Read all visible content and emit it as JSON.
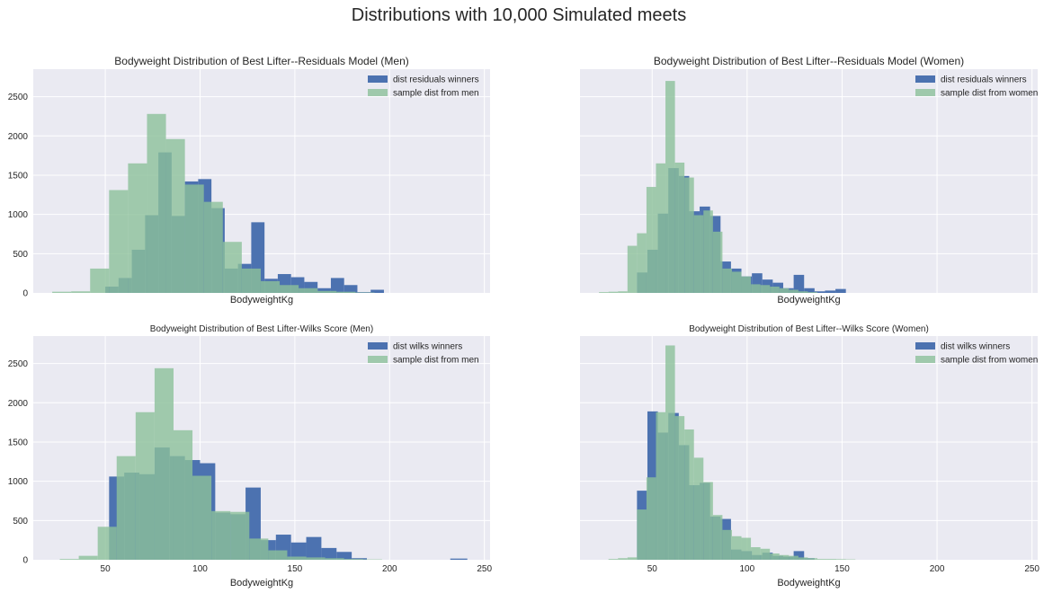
{
  "figure": {
    "suptitle": "Distributions with 10,000 Simulated meets"
  },
  "colors": {
    "axes_bg": "#EAEAF2",
    "grid": "#FFFFFF",
    "winners": "#4C72B0",
    "sample": "#8CC19A",
    "text": "#262626"
  },
  "chart_data": [
    {
      "type": "histogram",
      "title": "Bodyweight Distribution of Best Lifter--Residuals Model (Men)",
      "xlabel": "BodyweightKg",
      "ylabel": "",
      "xlim": [
        12,
        253
      ],
      "ylim": [
        0,
        2850
      ],
      "xticks": [],
      "yticks": [
        0,
        500,
        1000,
        1500,
        2000,
        2500
      ],
      "grid": true,
      "legend_position": "top-right",
      "series": [
        {
          "name": "dist residuals winners",
          "color": "#4C72B0",
          "opacity": 1,
          "bins": [
            [
              50,
              57,
              80
            ],
            [
              57,
              64,
              190
            ],
            [
              64,
              71,
              550
            ],
            [
              71,
              78,
              990
            ],
            [
              78,
              85,
              1790
            ],
            [
              85,
              92,
              980
            ],
            [
              92,
              99,
              1420
            ],
            [
              99,
              106,
              1450
            ],
            [
              106,
              113,
              1080
            ],
            [
              113,
              120,
              310
            ],
            [
              120,
              127,
              370
            ],
            [
              127,
              134,
              900
            ],
            [
              134,
              141,
              180
            ],
            [
              141,
              148,
              240
            ],
            [
              148,
              155,
              200
            ],
            [
              155,
              162,
              140
            ],
            [
              162,
              169,
              60
            ],
            [
              169,
              176,
              190
            ],
            [
              176,
              183,
              100
            ],
            [
              183,
              190,
              10
            ],
            [
              190,
              197,
              40
            ]
          ]
        },
        {
          "name": "sample dist from men",
          "color": "#8CC19A",
          "opacity": 0.8,
          "bins": [
            [
              22,
              32,
              15
            ],
            [
              32,
              42,
              20
            ],
            [
              42,
              52,
              310
            ],
            [
              52,
              62,
              1310
            ],
            [
              62,
              72,
              1650
            ],
            [
              72,
              82,
              2280
            ],
            [
              82,
              92,
              1960
            ],
            [
              92,
              102,
              1380
            ],
            [
              102,
              112,
              1160
            ],
            [
              112,
              122,
              650
            ],
            [
              122,
              132,
              310
            ],
            [
              132,
              142,
              150
            ],
            [
              142,
              152,
              100
            ],
            [
              152,
              162,
              60
            ],
            [
              162,
              172,
              25
            ],
            [
              172,
              182,
              15
            ],
            [
              182,
              192,
              5
            ]
          ]
        }
      ]
    },
    {
      "type": "histogram",
      "title": "Bodyweight Distribution of Best Lifter--Residuals Model (Women)",
      "xlabel": "BodyweightKg",
      "ylabel": "",
      "xlim": [
        12,
        253
      ],
      "ylim": [
        0,
        2850
      ],
      "xticks": [],
      "yticks": [],
      "grid": true,
      "legend_position": "top-right",
      "series": [
        {
          "name": "dist residuals winners",
          "color": "#4C72B0",
          "opacity": 1,
          "bins": [
            [
              42,
              47.5,
              260
            ],
            [
              47.5,
              53,
              550
            ],
            [
              53,
              58.5,
              1010
            ],
            [
              58.5,
              64,
              1590
            ],
            [
              64,
              69.5,
              1490
            ],
            [
              69.5,
              75,
              1040
            ],
            [
              75,
              80.5,
              1100
            ],
            [
              80.5,
              86,
              980
            ],
            [
              86,
              91.5,
              400
            ],
            [
              91.5,
              97,
              310
            ],
            [
              97,
              102.5,
              210
            ],
            [
              102.5,
              108,
              250
            ],
            [
              108,
              113.5,
              170
            ],
            [
              113.5,
              119,
              130
            ],
            [
              119,
              124.5,
              60
            ],
            [
              124.5,
              130,
              230
            ],
            [
              130,
              135.5,
              60
            ],
            [
              135.5,
              141,
              20
            ],
            [
              141,
              146.5,
              30
            ],
            [
              146.5,
              152,
              50
            ]
          ]
        },
        {
          "name": "sample dist from women",
          "color": "#8CC19A",
          "opacity": 0.8,
          "bins": [
            [
              22,
              27,
              10
            ],
            [
              27,
              32,
              15
            ],
            [
              32,
              37,
              20
            ],
            [
              37,
              42,
              600
            ],
            [
              42,
              47,
              760
            ],
            [
              47,
              52,
              1350
            ],
            [
              52,
              57,
              1650
            ],
            [
              57,
              62,
              2700
            ],
            [
              62,
              67,
              1660
            ],
            [
              67,
              72,
              1470
            ],
            [
              72,
              77,
              990
            ],
            [
              77,
              82,
              1050
            ],
            [
              82,
              87,
              780
            ],
            [
              87,
              92,
              310
            ],
            [
              92,
              97,
              270
            ],
            [
              97,
              102,
              210
            ],
            [
              102,
              107,
              110
            ],
            [
              107,
              112,
              100
            ],
            [
              112,
              117,
              80
            ],
            [
              117,
              122,
              60
            ],
            [
              122,
              127,
              40
            ],
            [
              127,
              132,
              20
            ],
            [
              132,
              137,
              10
            ]
          ]
        }
      ]
    },
    {
      "type": "histogram",
      "title": "Bodyweight Distribution of Best Lifter-Wilks Score (Men)",
      "xlabel": "BodyweightKg",
      "ylabel": "",
      "xlim": [
        12,
        253
      ],
      "ylim": [
        0,
        2850
      ],
      "xticks": [
        50,
        100,
        150,
        200,
        250
      ],
      "yticks": [
        0,
        500,
        1000,
        1500,
        2000,
        2500
      ],
      "grid": true,
      "legend_position": "top-right",
      "series": [
        {
          "name": "dist wilks winners",
          "color": "#4C72B0",
          "opacity": 1,
          "bins": [
            [
              52,
              60,
              1060
            ],
            [
              60,
              68,
              1110
            ],
            [
              68,
              76,
              1090
            ],
            [
              76,
              84,
              1430
            ],
            [
              84,
              92,
              1320
            ],
            [
              92,
              100,
              1270
            ],
            [
              100,
              108,
              1230
            ],
            [
              108,
              116,
              600
            ],
            [
              116,
              124,
              580
            ],
            [
              124,
              132,
              920
            ],
            [
              132,
              140,
              250
            ],
            [
              140,
              148,
              320
            ],
            [
              148,
              156,
              220
            ],
            [
              156,
              164,
              290
            ],
            [
              164,
              172,
              150
            ],
            [
              172,
              180,
              100
            ],
            [
              180,
              188,
              20
            ],
            [
              232,
              241,
              15
            ]
          ]
        },
        {
          "name": "sample dist from men",
          "color": "#8CC19A",
          "opacity": 0.8,
          "bins": [
            [
              26,
              36,
              10
            ],
            [
              36,
              46,
              50
            ],
            [
              46,
              56,
              420
            ],
            [
              56,
              66,
              1320
            ],
            [
              66,
              76,
              1880
            ],
            [
              76,
              86,
              2440
            ],
            [
              86,
              96,
              1650
            ],
            [
              96,
              106,
              1070
            ],
            [
              106,
              116,
              620
            ],
            [
              116,
              126,
              610
            ],
            [
              126,
              136,
              270
            ],
            [
              136,
              146,
              120
            ],
            [
              146,
              156,
              40
            ],
            [
              156,
              166,
              30
            ],
            [
              166,
              176,
              20
            ],
            [
              176,
              186,
              10
            ],
            [
              186,
              196,
              5
            ]
          ]
        }
      ]
    },
    {
      "type": "histogram",
      "title": "Bodyweight Distribution of Best Lifter--Wilks Score (Women)",
      "xlabel": "BodyweightKg",
      "ylabel": "",
      "xlim": [
        12,
        253
      ],
      "ylim": [
        0,
        2850
      ],
      "xticks": [
        50,
        100,
        150,
        200,
        250
      ],
      "yticks": [],
      "grid": true,
      "legend_position": "top-right",
      "series": [
        {
          "name": "dist wilks winners",
          "color": "#4C72B0",
          "opacity": 1,
          "bins": [
            [
              42,
              47.5,
              880
            ],
            [
              47.5,
              53,
              1890
            ],
            [
              53,
              58.5,
              1620
            ],
            [
              58.5,
              64,
              1870
            ],
            [
              64,
              69.5,
              1460
            ],
            [
              69.5,
              75,
              950
            ],
            [
              75,
              80.5,
              980
            ],
            [
              80.5,
              86,
              550
            ],
            [
              86,
              91.5,
              520
            ],
            [
              91.5,
              97,
              130
            ],
            [
              97,
              102.5,
              110
            ],
            [
              102.5,
              108,
              60
            ],
            [
              108,
              113.5,
              90
            ],
            [
              113.5,
              119,
              50
            ],
            [
              119,
              124.5,
              40
            ],
            [
              124.5,
              130,
              110
            ],
            [
              130,
              135.5,
              20
            ]
          ]
        },
        {
          "name": "sample dist from women",
          "color": "#8CC19A",
          "opacity": 0.8,
          "bins": [
            [
              27,
              32,
              10
            ],
            [
              32,
              37,
              20
            ],
            [
              37,
              42,
              30
            ],
            [
              42,
              47,
              640
            ],
            [
              47,
              52,
              1050
            ],
            [
              52,
              57,
              1880
            ],
            [
              57,
              62,
              2730
            ],
            [
              62,
              67,
              1830
            ],
            [
              67,
              72,
              1660
            ],
            [
              72,
              77,
              1300
            ],
            [
              77,
              82,
              990
            ],
            [
              82,
              87,
              570
            ],
            [
              87,
              92,
              380
            ],
            [
              92,
              97,
              300
            ],
            [
              97,
              102,
              280
            ],
            [
              102,
              107,
              160
            ],
            [
              107,
              112,
              140
            ],
            [
              112,
              117,
              80
            ],
            [
              117,
              122,
              60
            ],
            [
              122,
              127,
              50
            ],
            [
              127,
              132,
              30
            ],
            [
              132,
              137,
              20
            ],
            [
              137,
              142,
              10
            ],
            [
              142,
              147,
              10
            ],
            [
              147,
              152,
              8
            ],
            [
              152,
              157,
              5
            ]
          ]
        }
      ]
    }
  ]
}
